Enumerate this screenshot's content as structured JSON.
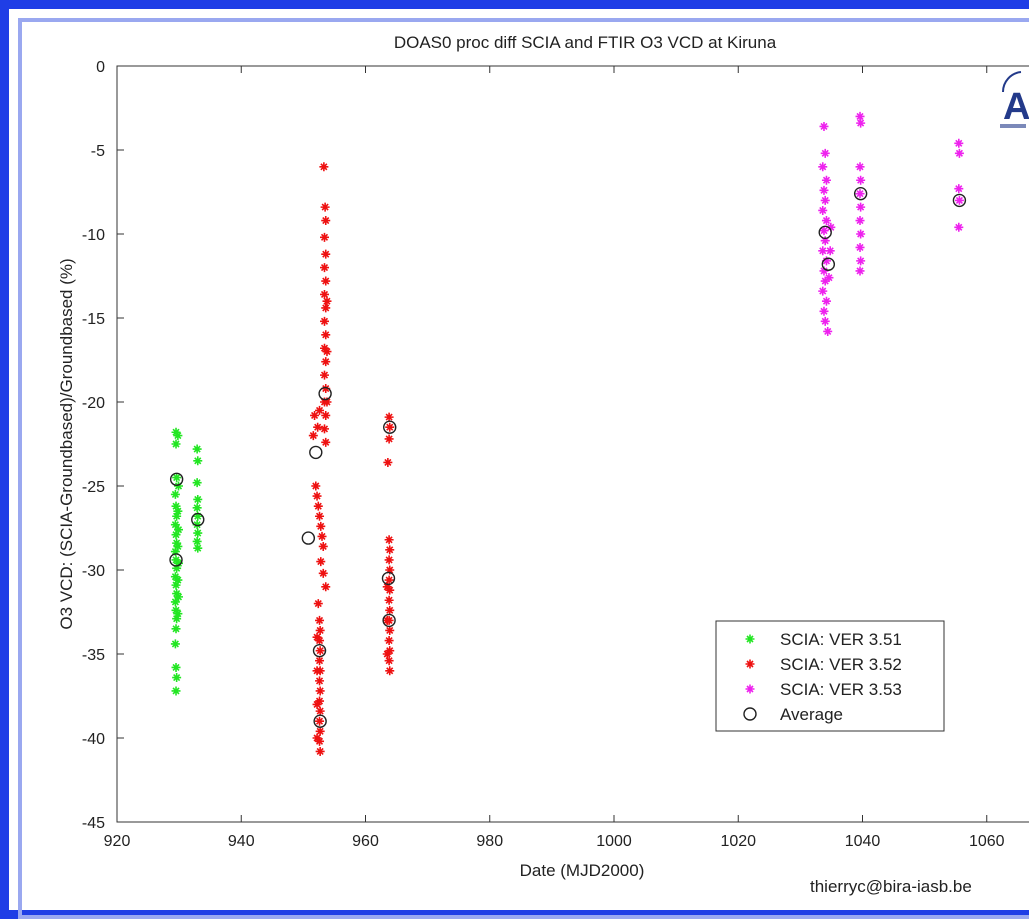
{
  "chart_data": {
    "type": "scatter",
    "title": "DOAS0 proc diff SCIA and FTIR O3 VCD at Kiruna",
    "xlabel": "Date (MJD2000)",
    "ylabel": "O3 VCD: (SCIA-Groundbased)/Groundbased (%)",
    "xlim": [
      920,
      1080
    ],
    "ylim": [
      -45,
      0
    ],
    "xticks": [
      920,
      940,
      960,
      980,
      1000,
      1020,
      1040,
      1060
    ],
    "yticks": [
      0,
      -5,
      -10,
      -15,
      -20,
      -25,
      -30,
      -35,
      -40,
      -45
    ],
    "grid": false,
    "legend_position": "bottom-right",
    "series": [
      {
        "name": "SCIA: VER 3.51",
        "color": "#22e622",
        "marker": "plus",
        "points": [
          [
            929.5,
            -21.8
          ],
          [
            929.5,
            -22.5
          ],
          [
            929.6,
            -24.5
          ],
          [
            929.4,
            -25.5
          ],
          [
            929.5,
            -26.2
          ],
          [
            929.6,
            -26.8
          ],
          [
            929.4,
            -27.3
          ],
          [
            929.5,
            -27.9
          ],
          [
            929.6,
            -28.4
          ],
          [
            929.4,
            -28.9
          ],
          [
            929.5,
            -29.4
          ],
          [
            929.6,
            -29.9
          ],
          [
            929.4,
            -30.4
          ],
          [
            929.5,
            -30.9
          ],
          [
            929.6,
            -31.4
          ],
          [
            929.4,
            -31.9
          ],
          [
            929.5,
            -32.4
          ],
          [
            929.6,
            -32.9
          ],
          [
            929.5,
            -33.5
          ],
          [
            929.4,
            -34.4
          ],
          [
            929.5,
            -35.8
          ],
          [
            929.6,
            -36.4
          ],
          [
            929.5,
            -37.2
          ],
          [
            929.8,
            -22.0
          ],
          [
            929.9,
            -25.0
          ],
          [
            929.8,
            -26.5
          ],
          [
            929.9,
            -27.6
          ],
          [
            929.8,
            -28.6
          ],
          [
            929.9,
            -29.6
          ],
          [
            929.8,
            -30.6
          ],
          [
            929.9,
            -31.6
          ],
          [
            929.8,
            -32.6
          ],
          [
            932.9,
            -22.8
          ],
          [
            933.0,
            -23.5
          ],
          [
            932.9,
            -24.8
          ],
          [
            933.0,
            -25.8
          ],
          [
            932.9,
            -26.3
          ],
          [
            933.0,
            -26.8
          ],
          [
            932.9,
            -27.3
          ],
          [
            933.0,
            -27.8
          ],
          [
            932.9,
            -28.3
          ],
          [
            933.0,
            -28.7
          ]
        ]
      },
      {
        "name": "SCIA: VER 3.52",
        "color": "#ee1111",
        "marker": "plus",
        "points": [
          [
            953.3,
            -6.0
          ],
          [
            953.5,
            -8.4
          ],
          [
            953.6,
            -9.2
          ],
          [
            953.4,
            -10.2
          ],
          [
            953.6,
            -11.2
          ],
          [
            953.4,
            -12.0
          ],
          [
            953.6,
            -12.8
          ],
          [
            953.4,
            -13.6
          ],
          [
            953.6,
            -14.4
          ],
          [
            953.4,
            -15.2
          ],
          [
            953.6,
            -16.0
          ],
          [
            953.4,
            -16.8
          ],
          [
            953.6,
            -17.6
          ],
          [
            953.4,
            -18.4
          ],
          [
            953.6,
            -19.2
          ],
          [
            953.4,
            -20.0
          ],
          [
            953.6,
            -20.8
          ],
          [
            953.4,
            -21.6
          ],
          [
            953.6,
            -22.4
          ],
          [
            953.8,
            -14.0
          ],
          [
            953.8,
            -17.0
          ],
          [
            953.8,
            -20.0
          ],
          [
            951.8,
            -20.8
          ],
          [
            952.3,
            -21.5
          ],
          [
            951.6,
            -22.0
          ],
          [
            952.6,
            -20.5
          ],
          [
            952.0,
            -25.0
          ],
          [
            952.2,
            -25.6
          ],
          [
            952.4,
            -26.2
          ],
          [
            952.6,
            -26.8
          ],
          [
            952.8,
            -27.4
          ],
          [
            953.0,
            -28.0
          ],
          [
            953.2,
            -28.6
          ],
          [
            952.8,
            -29.5
          ],
          [
            953.2,
            -30.2
          ],
          [
            953.6,
            -31.0
          ],
          [
            952.4,
            -32.0
          ],
          [
            952.6,
            -33.0
          ],
          [
            952.7,
            -33.6
          ],
          [
            952.6,
            -34.2
          ],
          [
            952.7,
            -34.8
          ],
          [
            952.6,
            -35.4
          ],
          [
            952.7,
            -36.0
          ],
          [
            952.6,
            -36.6
          ],
          [
            952.7,
            -37.2
          ],
          [
            952.6,
            -37.8
          ],
          [
            952.7,
            -38.4
          ],
          [
            952.6,
            -39.0
          ],
          [
            952.7,
            -39.6
          ],
          [
            952.6,
            -40.2
          ],
          [
            952.7,
            -40.8
          ],
          [
            952.2,
            -34.0
          ],
          [
            952.2,
            -36.0
          ],
          [
            952.2,
            -38.0
          ],
          [
            952.2,
            -40.0
          ],
          [
            963.8,
            -20.9
          ],
          [
            963.9,
            -21.5
          ],
          [
            963.8,
            -22.2
          ],
          [
            963.6,
            -23.6
          ],
          [
            963.8,
            -28.2
          ],
          [
            963.9,
            -28.8
          ],
          [
            963.8,
            -29.4
          ],
          [
            963.9,
            -30.0
          ],
          [
            963.8,
            -30.6
          ],
          [
            963.9,
            -31.2
          ],
          [
            963.8,
            -31.8
          ],
          [
            963.9,
            -32.4
          ],
          [
            963.8,
            -33.0
          ],
          [
            963.9,
            -33.6
          ],
          [
            963.8,
            -34.2
          ],
          [
            963.9,
            -34.8
          ],
          [
            963.8,
            -35.4
          ],
          [
            963.9,
            -36.0
          ],
          [
            963.5,
            -31.0
          ],
          [
            963.5,
            -33.0
          ],
          [
            963.5,
            -35.0
          ]
        ]
      },
      {
        "name": "SCIA: VER 3.53",
        "color": "#ee22ee",
        "marker": "plus",
        "points": [
          [
            1033.8,
            -3.6
          ],
          [
            1034.0,
            -5.2
          ],
          [
            1033.6,
            -6.0
          ],
          [
            1034.2,
            -6.8
          ],
          [
            1033.8,
            -7.4
          ],
          [
            1034.0,
            -8.0
          ],
          [
            1033.6,
            -8.6
          ],
          [
            1034.2,
            -9.2
          ],
          [
            1033.8,
            -9.8
          ],
          [
            1034.0,
            -10.4
          ],
          [
            1033.6,
            -11.0
          ],
          [
            1034.2,
            -11.6
          ],
          [
            1033.8,
            -12.2
          ],
          [
            1034.0,
            -12.8
          ],
          [
            1033.6,
            -13.4
          ],
          [
            1034.2,
            -14.0
          ],
          [
            1033.8,
            -14.6
          ],
          [
            1034.0,
            -15.2
          ],
          [
            1034.4,
            -15.8
          ],
          [
            1034.8,
            -11.0
          ],
          [
            1034.6,
            -12.6
          ],
          [
            1034.9,
            -9.6
          ],
          [
            1039.6,
            -3.0
          ],
          [
            1039.7,
            -3.4
          ],
          [
            1039.6,
            -6.0
          ],
          [
            1039.7,
            -6.8
          ],
          [
            1039.6,
            -7.6
          ],
          [
            1039.7,
            -8.4
          ],
          [
            1039.6,
            -9.2
          ],
          [
            1039.7,
            -10.0
          ],
          [
            1039.6,
            -10.8
          ],
          [
            1039.7,
            -11.6
          ],
          [
            1039.6,
            -12.2
          ],
          [
            1055.5,
            -4.6
          ],
          [
            1055.6,
            -5.2
          ],
          [
            1055.5,
            -7.3
          ],
          [
            1055.6,
            -8.0
          ],
          [
            1055.5,
            -9.6
          ]
        ]
      },
      {
        "name": "Average",
        "color": "#222222",
        "marker": "circle",
        "points": [
          [
            929.6,
            -24.6
          ],
          [
            929.5,
            -29.4
          ],
          [
            933.0,
            -27.0
          ],
          [
            952.0,
            -23.0
          ],
          [
            950.8,
            -28.1
          ],
          [
            953.5,
            -19.5
          ],
          [
            952.6,
            -34.8
          ],
          [
            952.7,
            -39.0
          ],
          [
            963.9,
            -21.5
          ],
          [
            963.7,
            -30.5
          ],
          [
            963.8,
            -33.0
          ],
          [
            1034.0,
            -9.9
          ],
          [
            1034.5,
            -11.8
          ],
          [
            1039.7,
            -7.6
          ],
          [
            1055.6,
            -8.0
          ]
        ]
      }
    ]
  },
  "credit": "thierryc@bira-iasb.be",
  "logo_letter": "A"
}
